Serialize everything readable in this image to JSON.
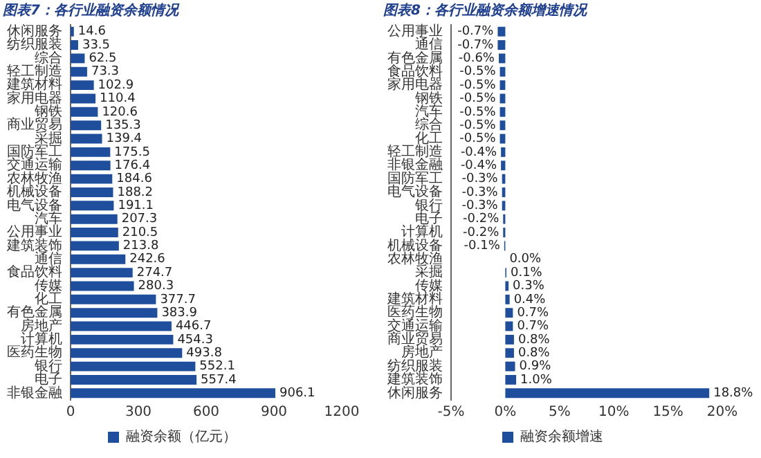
{
  "chart_data": [
    {
      "type": "bar",
      "orientation": "horizontal",
      "title": "图表7：各行业融资余额情况",
      "categories": [
        "休闲服务",
        "纺织服装",
        "综合",
        "轻工制造",
        "建筑材料",
        "家用电器",
        "钢铁",
        "商业贸易",
        "采掘",
        "国防军工",
        "交通运输",
        "农林牧渔",
        "机械设备",
        "电气设备",
        "汽车",
        "公用事业",
        "建筑装饰",
        "通信",
        "食品饮料",
        "传媒",
        "化工",
        "有色金属",
        "房地产",
        "计算机",
        "医药生物",
        "银行",
        "电子",
        "非银金融"
      ],
      "series": [
        {
          "name": "融资余额（亿元）",
          "color": "#1f4e9c",
          "values": [
            14.6,
            33.5,
            62.5,
            73.3,
            102.9,
            110.4,
            120.6,
            135.3,
            139.4,
            175.5,
            176.4,
            184.6,
            188.2,
            191.1,
            207.3,
            210.5,
            213.8,
            242.6,
            274.7,
            280.3,
            377.7,
            383.9,
            446.7,
            454.3,
            493.8,
            552.1,
            557.4,
            906.1
          ]
        }
      ],
      "xlim": [
        0,
        1200
      ],
      "xticks": [
        0,
        300,
        600,
        900,
        1200
      ],
      "data_labels": true,
      "legend": "bottom",
      "grid": false
    },
    {
      "type": "bar",
      "orientation": "horizontal",
      "title": "图表8：各行业融资余额增速情况",
      "categories": [
        "公用事业",
        "通信",
        "有色金属",
        "食品饮料",
        "家用电器",
        "钢铁",
        "汽车",
        "综合",
        "化工",
        "轻工制造",
        "非银金融",
        "国防军工",
        "电气设备",
        "银行",
        "电子",
        "计算机",
        "机械设备",
        "农林牧渔",
        "采掘",
        "传媒",
        "建筑材料",
        "医药生物",
        "交通运输",
        "商业贸易",
        "房地产",
        "纺织服装",
        "建筑装饰",
        "休闲服务"
      ],
      "series": [
        {
          "name": "融资余额增速",
          "color": "#1f4e9c",
          "values": [
            -0.7,
            -0.7,
            -0.6,
            -0.5,
            -0.5,
            -0.5,
            -0.5,
            -0.5,
            -0.5,
            -0.4,
            -0.4,
            -0.3,
            -0.3,
            -0.3,
            -0.2,
            -0.2,
            -0.1,
            0.0,
            0.1,
            0.3,
            0.4,
            0.7,
            0.7,
            0.8,
            0.8,
            0.9,
            1.0,
            18.8
          ],
          "value_labels": [
            "-0.7%",
            "-0.7%",
            "-0.6%",
            "-0.5%",
            "-0.5%",
            "-0.5%",
            "-0.5%",
            "-0.5%",
            "-0.5%",
            "-0.4%",
            "-0.4%",
            "-0.3%",
            "-0.3%",
            "-0.3%",
            "-0.2%",
            "-0.2%",
            "-0.1%",
            "0.0%",
            "0.1%",
            "0.3%",
            "0.4%",
            "0.7%",
            "0.7%",
            "0.8%",
            "0.8%",
            "0.9%",
            "1.0%",
            "18.8%"
          ]
        }
      ],
      "xlim": [
        -5,
        20
      ],
      "xticks": [
        {
          "value": -5,
          "label": "-5%"
        },
        {
          "value": 0,
          "label": "0%"
        },
        {
          "value": 5,
          "label": "5%"
        },
        {
          "value": 10,
          "label": "10%"
        },
        {
          "value": 15,
          "label": "15%"
        },
        {
          "value": 20,
          "label": "20%"
        }
      ],
      "legend": "bottom",
      "grid": false
    }
  ]
}
